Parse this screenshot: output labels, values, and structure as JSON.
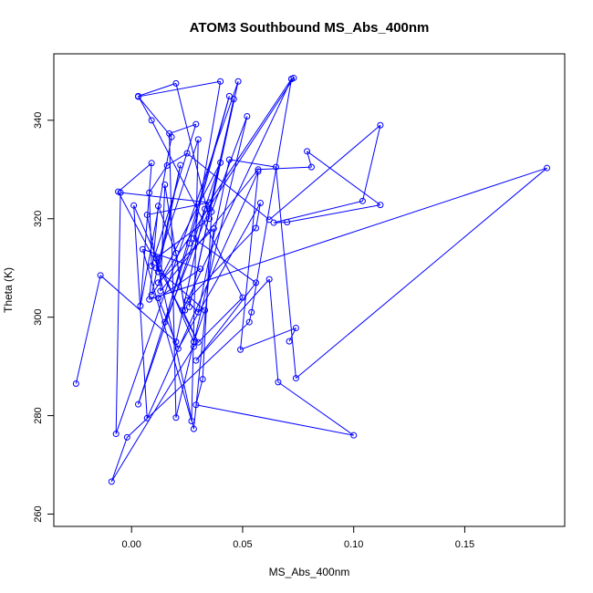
{
  "chart_data": {
    "type": "line",
    "title": "ATOM3 Southbound MS_Abs_400nm",
    "xlabel": "MS_Abs_400nm",
    "ylabel": "Theta (K)",
    "xlim": [
      -0.035,
      0.195
    ],
    "ylim": [
      257.5,
      353.5
    ],
    "x_ticks": [
      0.0,
      0.05,
      0.1,
      0.15
    ],
    "x_tick_labels": [
      "0.00",
      "0.05",
      "0.10",
      "0.15"
    ],
    "y_ticks": [
      260,
      280,
      300,
      320,
      340
    ],
    "y_tick_labels": [
      "260",
      "280",
      "300",
      "320",
      "340"
    ],
    "grid": false,
    "marker": "open-circle",
    "series": [
      {
        "color": "#0000ff",
        "x": [
          -0.025,
          -0.014,
          0.02,
          0.033,
          0.072,
          0.073,
          0.009,
          0.022,
          0.012,
          0.007,
          0.035,
          -0.005,
          -0.007,
          0.048,
          0.026,
          0.046,
          0.035,
          0.015,
          0.044,
          0.026,
          0.003,
          0.04,
          0.012,
          0.037,
          0.028,
          0.011,
          0.035,
          0.02,
          0.003,
          0.009,
          0.05,
          0.028,
          -0.009,
          -0.002,
          0.053,
          0.054,
          0.072,
          0.023,
          0.03,
          -0.006,
          0.009,
          0.004,
          0.018,
          0.003,
          0.04,
          0.028,
          0.056,
          0.029,
          0.062,
          0.066,
          0.1,
          0.029,
          0.032,
          0.036,
          0.052,
          0.02,
          0.017,
          0.029,
          0.009,
          0.008,
          0.016,
          0.025,
          0.062,
          0.112,
          0.104,
          0.064,
          0.07,
          0.112,
          0.079,
          0.081,
          0.057,
          0.013,
          0.015,
          0.024,
          0.02,
          0.012,
          0.008,
          0.187,
          0.074,
          0.065,
          0.044,
          0.03,
          0.025,
          0.056,
          0.058,
          0.021,
          0.012,
          0.031,
          0.005,
          0.027,
          0.03,
          0.011,
          0.033,
          0.028,
          0.001,
          0.007,
          0.057,
          0.049,
          0.074,
          0.071
        ],
        "y": [
          286.5,
          308.5,
          295.0,
          322.0,
          348.4,
          348.6,
          304.5,
          330.9,
          309.2,
          320.8,
          323.3,
          325.3,
          276.3,
          347.9,
          302.1,
          344.3,
          322.0,
          299.0,
          344.9,
          315.0,
          282.3,
          331.4,
          307.0,
          318.0,
          277.3,
          312.0,
          320.0,
          347.5,
          344.9,
          340.0,
          304.0,
          294.0,
          266.6,
          275.6,
          299.0,
          301.0,
          348.4,
          301.4,
          294.9,
          325.5,
          331.3,
          302.3,
          336.6,
          344.8,
          347.9,
          316.0,
          307.0,
          291.2,
          307.7,
          286.8,
          276.0,
          282.2,
          287.4,
          321.4,
          340.8,
          279.6,
          337.3,
          339.2,
          310.4,
          325.3,
          330.8,
          333.3,
          319.8,
          339.0,
          323.6,
          319.2,
          319.3,
          322.8,
          333.7,
          330.5,
          330.0,
          305.3,
          326.9,
          301.4,
          313.0,
          322.6,
          303.6,
          330.3,
          287.6,
          330.5,
          332.0,
          301.0,
          303.4,
          318.1,
          323.2,
          293.6,
          303.9,
          309.8,
          313.8,
          278.9,
          336.1,
          310.0,
          301.4,
          295.0,
          322.7,
          279.5,
          329.6,
          293.4,
          297.8,
          295.1
        ]
      }
    ]
  }
}
